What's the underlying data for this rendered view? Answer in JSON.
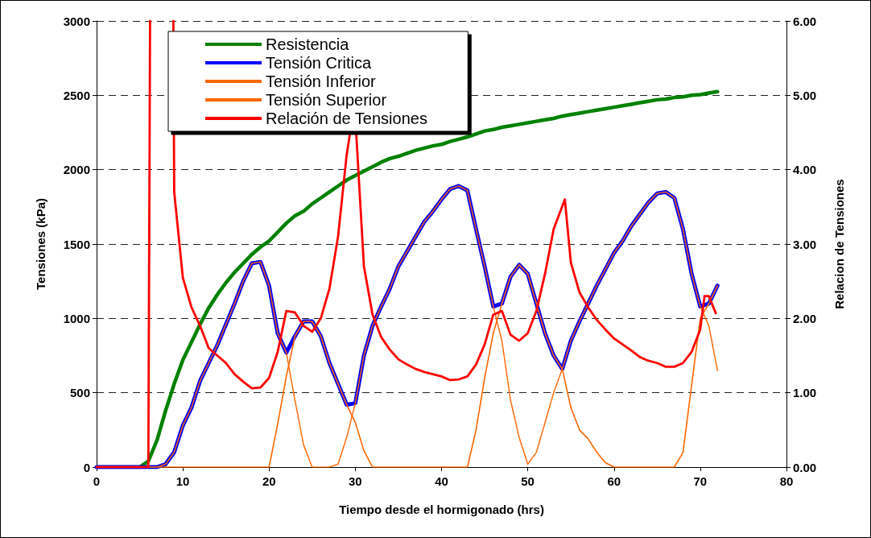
{
  "chart_data": {
    "type": "line",
    "xlabel": "Tiempo desde el hormigonado (hrs)",
    "ylabel": "Tensiones (kPa)",
    "y2label": "Relacion de Tensiones",
    "x": [
      0,
      5,
      6,
      7,
      8,
      9,
      10,
      11,
      12,
      13,
      14,
      15,
      16,
      17,
      18,
      19,
      20,
      21,
      22,
      23,
      24,
      25,
      26,
      27,
      28,
      29,
      30,
      31,
      32,
      33,
      34,
      35,
      36,
      37,
      38,
      39,
      40,
      41,
      42,
      43,
      44,
      45,
      46,
      47,
      48,
      49,
      50,
      51,
      52,
      53,
      54,
      55,
      56,
      57,
      58,
      59,
      60,
      61,
      62,
      63,
      64,
      65,
      66,
      67,
      68,
      69,
      70,
      71,
      72
    ],
    "series": [
      {
        "name": "Resistencia",
        "color": "#008000",
        "line_style": "solid",
        "values": [
          0,
          0,
          40,
          180,
          380,
          560,
          720,
          840,
          960,
          1070,
          1160,
          1240,
          1310,
          1370,
          1430,
          1480,
          1520,
          1580,
          1640,
          1690,
          1720,
          1770,
          1810,
          1850,
          1890,
          1930,
          1960,
          1990,
          2020,
          2050,
          2075,
          2090,
          2110,
          2130,
          2145,
          2160,
          2170,
          2190,
          2205,
          2220,
          2240,
          2260,
          2270,
          2285,
          2295,
          2305,
          2315,
          2325,
          2335,
          2345,
          2360,
          2370,
          2380,
          2390,
          2400,
          2410,
          2420,
          2430,
          2440,
          2450,
          2460,
          2470,
          2475,
          2485,
          2490,
          2500,
          2505,
          2515,
          2525
        ]
      },
      {
        "name": "Tensión Critica",
        "color": "#0000ff",
        "line_style": "solid",
        "values": [
          0,
          0,
          0,
          0,
          20,
          100,
          280,
          400,
          580,
          700,
          820,
          960,
          1100,
          1250,
          1370,
          1380,
          1220,
          900,
          770,
          880,
          980,
          980,
          880,
          700,
          560,
          420,
          430,
          750,
          950,
          1080,
          1200,
          1350,
          1450,
          1550,
          1650,
          1720,
          1800,
          1870,
          1890,
          1860,
          1600,
          1350,
          1080,
          1100,
          1280,
          1360,
          1300,
          1100,
          900,
          750,
          660,
          850,
          980,
          1100,
          1220,
          1330,
          1440,
          1520,
          1620,
          1700,
          1780,
          1840,
          1850,
          1810,
          1600,
          1300,
          1080,
          1100,
          1220
        ]
      },
      {
        "name": "Tensión Inferior",
        "color": "#ff6600",
        "line_style": "dotted",
        "values": [
          0,
          0,
          0,
          0,
          20,
          100,
          280,
          400,
          580,
          700,
          820,
          960,
          1100,
          1250,
          1370,
          1380,
          1220,
          900,
          770,
          450,
          150,
          0,
          0,
          0,
          20,
          200,
          430,
          750,
          950,
          1080,
          1200,
          1350,
          1450,
          1550,
          1650,
          1720,
          1800,
          1870,
          1890,
          1860,
          1600,
          1350,
          1080,
          850,
          450,
          200,
          20,
          100,
          300,
          500,
          660,
          850,
          980,
          1100,
          1220,
          1330,
          1440,
          1520,
          1620,
          1700,
          1780,
          1840,
          1850,
          1810,
          1600,
          1300,
          1080,
          950,
          650
        ]
      },
      {
        "name": "Tensión Superior",
        "color": "#ff6600",
        "line_style": "solid",
        "values": [
          0,
          0,
          0,
          0,
          0,
          0,
          0,
          0,
          0,
          0,
          0,
          0,
          0,
          0,
          0,
          0,
          0,
          290,
          610,
          880,
          980,
          980,
          880,
          700,
          560,
          420,
          300,
          110,
          0,
          0,
          0,
          0,
          0,
          0,
          0,
          0,
          0,
          0,
          0,
          0,
          250,
          600,
          900,
          1100,
          1280,
          1360,
          1300,
          1100,
          900,
          750,
          660,
          400,
          250,
          190,
          100,
          30,
          0,
          0,
          0,
          0,
          0,
          0,
          0,
          0,
          100,
          550,
          1000,
          1100,
          1220
        ]
      },
      {
        "name": "Relación de Tensiones",
        "color": "#ff0000",
        "line_style": "solid",
        "axis": "y2",
        "x": [
          0,
          6,
          6.2,
          7.5,
          8.9,
          9,
          10,
          11,
          12,
          13,
          14,
          15,
          16,
          17,
          18,
          19,
          20,
          21,
          22,
          23,
          24,
          25,
          26,
          27,
          28,
          29,
          29.4,
          29.8,
          30.1,
          30.5,
          31,
          32,
          33,
          34,
          35,
          36,
          37,
          38,
          39,
          40,
          41,
          42,
          43,
          44,
          45,
          46,
          47,
          48,
          49,
          50,
          51,
          52,
          53,
          54.3,
          55,
          56,
          57,
          58,
          59,
          60,
          61,
          62,
          63,
          64,
          65,
          66,
          67,
          68,
          69,
          70,
          70.5,
          71,
          71.8
        ],
        "values": [
          0,
          0,
          6,
          null,
          6,
          3.7,
          2.55,
          2.15,
          1.9,
          1.6,
          1.5,
          1.4,
          1.25,
          1.15,
          1.06,
          1.07,
          1.2,
          1.55,
          2.1,
          2.08,
          1.9,
          1.82,
          2.0,
          2.4,
          3.1,
          4.2,
          4.5,
          null,
          4.5,
          3.7,
          2.7,
          2.05,
          1.75,
          1.58,
          1.45,
          1.38,
          1.32,
          1.28,
          1.25,
          1.22,
          1.17,
          1.18,
          1.22,
          1.38,
          1.65,
          2.05,
          2.1,
          1.78,
          1.7,
          1.8,
          2.1,
          2.6,
          3.2,
          3.6,
          2.75,
          2.35,
          2.15,
          1.98,
          1.85,
          1.73,
          1.65,
          1.57,
          1.48,
          1.43,
          1.4,
          1.35,
          1.35,
          1.4,
          1.55,
          1.85,
          2.3,
          2.3,
          2.07
        ]
      }
    ],
    "xlim": [
      0,
      80
    ],
    "xticks": [
      0,
      10,
      20,
      30,
      40,
      50,
      60,
      70,
      80
    ],
    "ylim": [
      0,
      3000
    ],
    "yticks": [
      0,
      500,
      1000,
      1500,
      2000,
      2500,
      3000
    ],
    "y2lim": [
      0,
      6
    ],
    "y2ticks": [
      {
        "value": 0,
        "label": "0.00"
      },
      {
        "value": 1,
        "label": "1.00"
      },
      {
        "value": 2,
        "label": "2.00"
      },
      {
        "value": 3,
        "label": "3.00"
      },
      {
        "value": 4,
        "label": "4.00"
      },
      {
        "value": 5,
        "label": "5.00"
      },
      {
        "value": 6,
        "label": "6.00"
      }
    ],
    "grid": "y",
    "legend": "top left",
    "marker": "none"
  }
}
